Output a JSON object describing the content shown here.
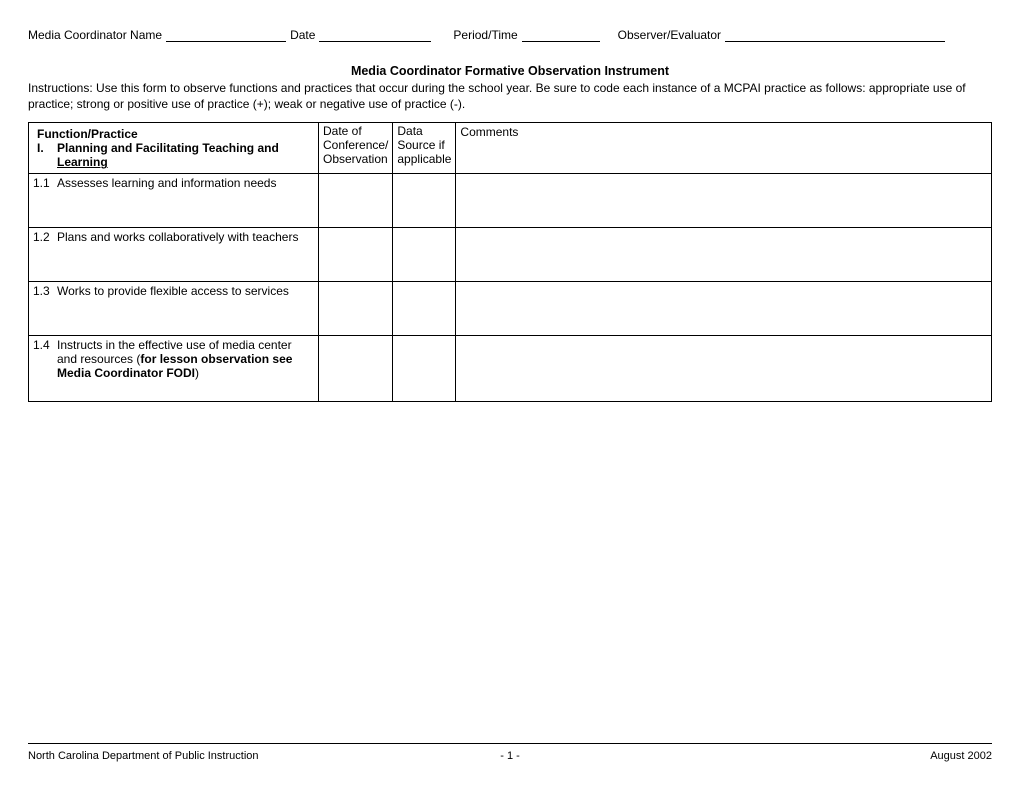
{
  "header": {
    "field1_label": "Media Coordinator Name",
    "field2_label": "Date",
    "field3_label": "Period/Time",
    "field4_label": "Observer/Evaluator"
  },
  "title": "Media Coordinator Formative Observation Instrument",
  "instructions": "Instructions: Use this form to observe functions and practices that occur during the school year. Be sure to code each instance of a MCPAI practice as follows: appropriate use of practice; strong or positive use of practice (+); weak or negative use of practice (-).",
  "table": {
    "header": {
      "function_practice": "Function/Practice",
      "roman": "I.",
      "section_title": "Planning and Facilitating Teaching and",
      "section_title2": "Learning",
      "date_col": "Date of Conference/ Observation",
      "source_col": "Data Source if applicable",
      "comments_col": "Comments"
    },
    "rows": [
      {
        "num": "1.1",
        "text": "Assesses learning and information needs"
      },
      {
        "num": "1.2",
        "text": "Plans and works collaboratively with teachers"
      },
      {
        "num": "1.3",
        "text": "Works to provide flexible access to services"
      },
      {
        "num": "1.4",
        "text_pre": "Instructs in the effective use of media center and resources (",
        "text_bold": "for lesson observation see Media Coordinator FODI",
        "text_post": ")"
      }
    ]
  },
  "footer": {
    "left": "North Carolina Department of Public Instruction",
    "center": "- 1 -",
    "right": "August 2002"
  }
}
